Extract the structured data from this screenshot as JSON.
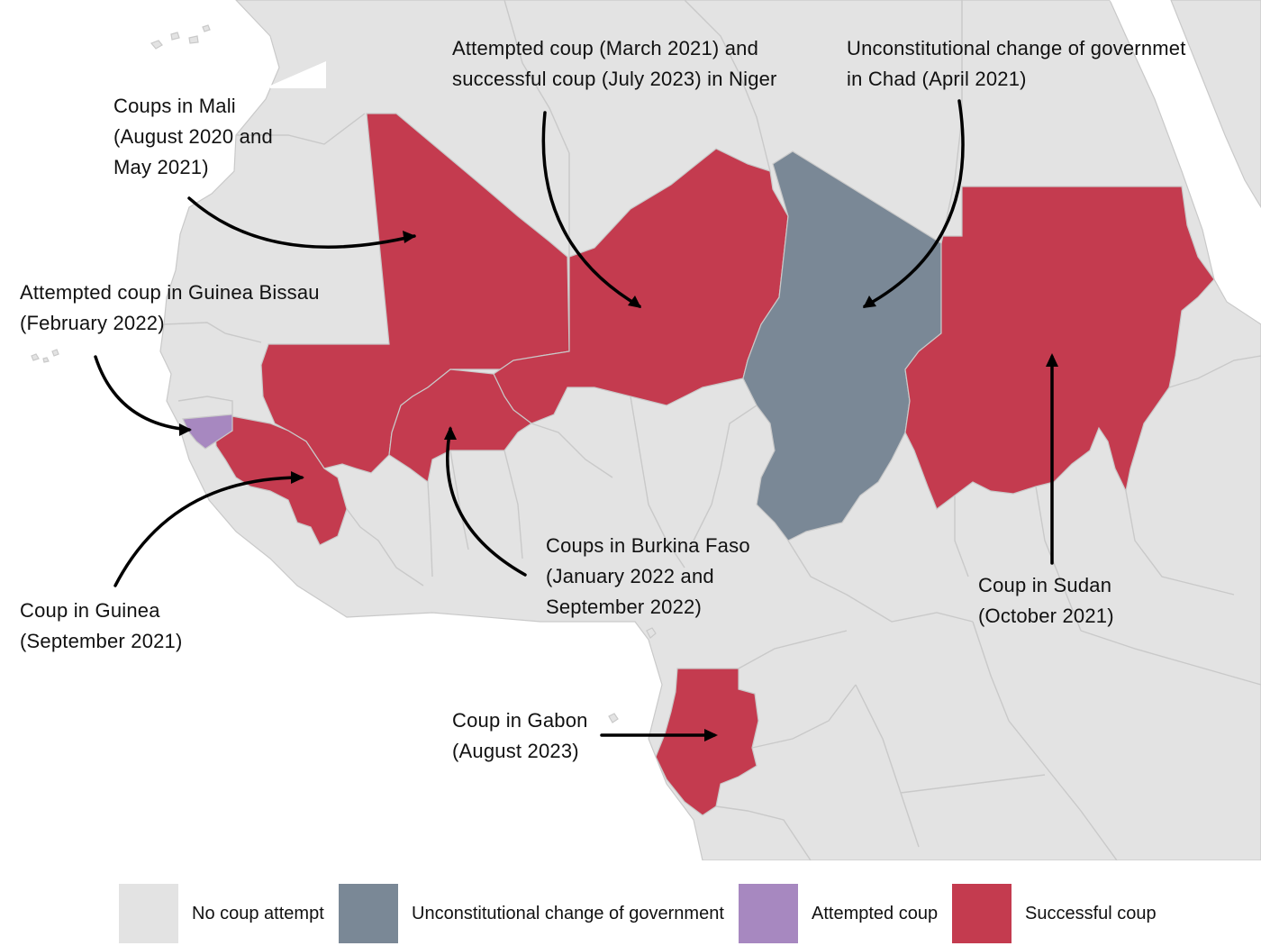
{
  "colors": {
    "ocean": "#ffffff",
    "no_coup": "#e3e3e3",
    "unconstitutional": "#7a8896",
    "attempted": "#a788c0",
    "successful": "#c43b4f",
    "border": "#c9c9c9",
    "arrow": "#000000"
  },
  "annotations": {
    "mali": [
      "Coups in Mali",
      "(August 2020 and",
      "May 2021)"
    ],
    "niger": [
      "Attempted coup (March 2021) and",
      "successful coup (July 2023) in Niger"
    ],
    "chad": [
      "Unconstitutional change of governmet",
      "in Chad (April 2021)"
    ],
    "guinea_bissau": [
      "Attempted coup in Guinea Bissau",
      "(February 2022)"
    ],
    "burkina": [
      "Coups in Burkina Faso",
      "(January 2022 and",
      "September 2022)"
    ],
    "sudan": [
      "Coup in Sudan",
      "(October 2021)"
    ],
    "guinea": [
      "Coup in Guinea",
      "(September 2021)"
    ],
    "gabon": [
      "Coup in Gabon",
      "(August 2023)"
    ]
  },
  "legend": [
    {
      "label": "No coup attempt",
      "color": "#e3e3e3"
    },
    {
      "label": "Unconstitutional change of government",
      "color": "#7a8896"
    },
    {
      "label": "Attempted coup",
      "color": "#a788c0"
    },
    {
      "label": "Successful coup",
      "color": "#c43b4f"
    }
  ]
}
